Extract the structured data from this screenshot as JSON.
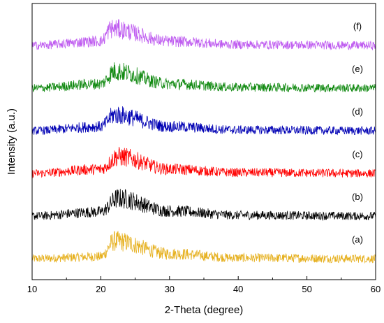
{
  "chart_data": {
    "type": "line",
    "title": "",
    "xlabel": "2-Theta (degree)",
    "ylabel": "Intensity (a.u.)",
    "xlim": [
      10,
      60
    ],
    "x_ticks": [
      10,
      20,
      30,
      40,
      50,
      60
    ],
    "y_ticks_shown": false,
    "grid": false,
    "legend": "inline labels at right end of each trace",
    "description_shape": "broad amorphous hump centered near 2θ ≈ 22°",
    "series": [
      {
        "label": "(a)",
        "color": "#e6b01e",
        "offset": 0,
        "peak_x": 22,
        "peak_height": 0.42,
        "noise": 0.3,
        "baseline": [
          [
            10,
            0
          ],
          [
            20,
            0.05
          ],
          [
            22,
            0.42
          ],
          [
            30,
            0.12
          ],
          [
            40,
            0.02
          ],
          [
            60,
            0
          ]
        ]
      },
      {
        "label": "(b)",
        "color": "#000000",
        "offset": 1,
        "peak_x": 22.5,
        "peak_height": 0.42,
        "noise": 0.3,
        "baseline": [
          [
            10,
            0
          ],
          [
            20,
            0.1
          ],
          [
            22.5,
            0.42
          ],
          [
            30,
            0.12
          ],
          [
            40,
            0.02
          ],
          [
            60,
            0
          ]
        ]
      },
      {
        "label": "(c)",
        "color": "#ff0000",
        "offset": 2,
        "peak_x": 22.5,
        "peak_height": 0.4,
        "noise": 0.3,
        "baseline": [
          [
            10,
            0
          ],
          [
            20,
            0.1
          ],
          [
            22.5,
            0.4
          ],
          [
            30,
            0.1
          ],
          [
            40,
            0.02
          ],
          [
            60,
            0
          ]
        ]
      },
      {
        "label": "(d)",
        "color": "#0000b4",
        "offset": 3,
        "peak_x": 22,
        "peak_height": 0.38,
        "noise": 0.3,
        "baseline": [
          [
            10,
            0
          ],
          [
            20,
            0.1
          ],
          [
            22,
            0.38
          ],
          [
            30,
            0.1
          ],
          [
            40,
            0.02
          ],
          [
            60,
            0
          ]
        ]
      },
      {
        "label": "(e)",
        "color": "#128a12",
        "offset": 4,
        "peak_x": 22,
        "peak_height": 0.4,
        "noise": 0.3,
        "baseline": [
          [
            10,
            0
          ],
          [
            20,
            0.1
          ],
          [
            22,
            0.4
          ],
          [
            30,
            0.1
          ],
          [
            40,
            0.02
          ],
          [
            60,
            0
          ]
        ]
      },
      {
        "label": "(f)",
        "color": "#bf5cf0",
        "offset": 5,
        "peak_x": 21.5,
        "peak_height": 0.4,
        "noise": 0.3,
        "baseline": [
          [
            10,
            0
          ],
          [
            20,
            0.1
          ],
          [
            21.5,
            0.4
          ],
          [
            30,
            0.1
          ],
          [
            40,
            0.02
          ],
          [
            60,
            0
          ]
        ]
      }
    ]
  }
}
